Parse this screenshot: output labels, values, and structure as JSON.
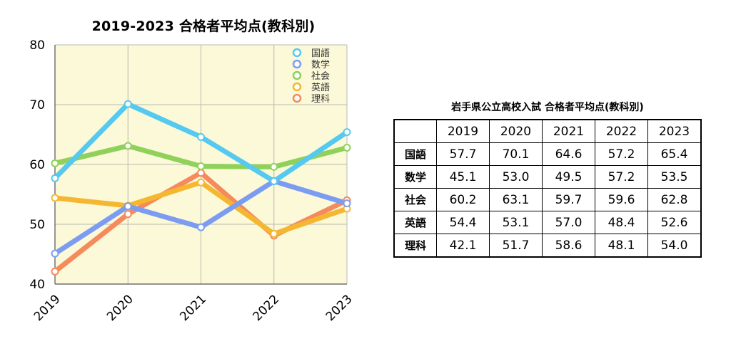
{
  "chart_title": "2019-2023 合格者平均点(教科別)",
  "table_title": "岩手県公立高校入試  合格者平均点(教科別)",
  "chart_data": {
    "type": "line",
    "title": "2019-2023 合格者平均点(教科別)",
    "xlabel": "",
    "ylabel": "",
    "categories": [
      "2019",
      "2020",
      "2021",
      "2022",
      "2023"
    ],
    "ylim": [
      40,
      80
    ],
    "yticks": [
      "40",
      "50",
      "60",
      "70",
      "80"
    ],
    "grid": true,
    "legend_position": "top-right",
    "background": "#fbf9d8",
    "series": [
      {
        "name": "国語",
        "color": "#56c9f0",
        "values": [
          57.7,
          70.1,
          64.6,
          57.2,
          65.4
        ]
      },
      {
        "name": "数学",
        "color": "#7c9cf2",
        "values": [
          45.1,
          53.0,
          49.5,
          57.2,
          53.5
        ]
      },
      {
        "name": "社会",
        "color": "#8fd15a",
        "values": [
          60.2,
          63.1,
          59.7,
          59.6,
          62.8
        ]
      },
      {
        "name": "英語",
        "color": "#f5b731",
        "values": [
          54.4,
          53.1,
          57.0,
          48.4,
          52.6
        ]
      },
      {
        "name": "理科",
        "color": "#f58a5c",
        "values": [
          42.1,
          51.7,
          58.6,
          48.1,
          54.0
        ]
      }
    ]
  },
  "table": {
    "headers": [
      "",
      "2019",
      "2020",
      "2021",
      "2022",
      "2023"
    ],
    "rows": [
      {
        "subject": "国語",
        "values": [
          "57.7",
          "70.1",
          "64.6",
          "57.2",
          "65.4"
        ]
      },
      {
        "subject": "数学",
        "values": [
          "45.1",
          "53.0",
          "49.5",
          "57.2",
          "53.5"
        ]
      },
      {
        "subject": "社会",
        "values": [
          "60.2",
          "63.1",
          "59.7",
          "59.6",
          "62.8"
        ]
      },
      {
        "subject": "英語",
        "values": [
          "54.4",
          "53.1",
          "57.0",
          "48.4",
          "52.6"
        ]
      },
      {
        "subject": "理科",
        "values": [
          "42.1",
          "51.7",
          "58.6",
          "48.1",
          "54.0"
        ]
      }
    ]
  }
}
